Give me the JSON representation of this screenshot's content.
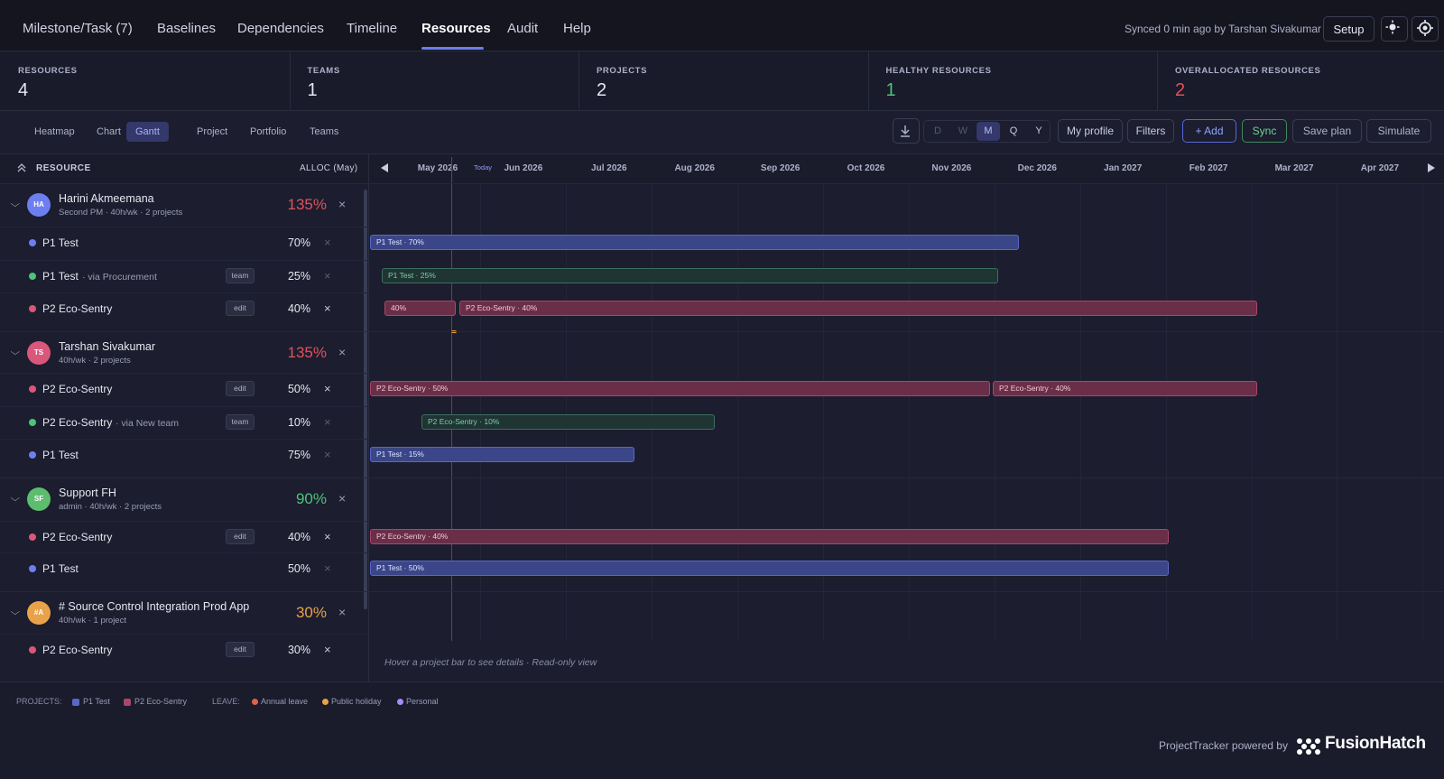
{
  "nav": {
    "tabs": [
      "Milestone/Task (7)",
      "Baselines",
      "Dependencies",
      "Timeline",
      "Resources",
      "Audit",
      "Help"
    ],
    "sync_status": "Synced 0 min ago by Tarshan Sivakumar",
    "setup": "Setup"
  },
  "stats": [
    {
      "label": "RESOURCES",
      "value": 4
    },
    {
      "label": "TEAMS",
      "value": 1
    },
    {
      "label": "PROJECTS",
      "value": 2
    },
    {
      "label": "HEALTHY RESOURCES",
      "value": 1
    },
    {
      "label": "OVERALLOCATED RESOURCES",
      "value": 2
    }
  ],
  "toolbar": {
    "views": [
      "Heatmap",
      "Chart",
      "Gantt",
      "Project",
      "Portfolio",
      "Teams"
    ],
    "scales": [
      "D",
      "W",
      "M",
      "Q",
      "Y"
    ],
    "my_profile": "My profile",
    "filters": "Filters",
    "add": "+ Add",
    "sync": "Sync",
    "save_plan": "Save plan",
    "simulate": "Simulate"
  },
  "grid_header": {
    "resource": "RESOURCE",
    "alloc": "ALLOC (May)",
    "today": "Today",
    "months": [
      "May 2026",
      "Jun 2026",
      "Jul 2026",
      "Aug 2026",
      "Sep 2026",
      "Oct 2026",
      "Nov 2026",
      "Dec 2026",
      "Jan 2027",
      "Feb 2027",
      "Mar 2027",
      "Apr 2027"
    ]
  },
  "resources": [
    {
      "initials": "HA",
      "name": "Harini Akmeemana",
      "meta": "Second PM · 40h/wk · 2 projects",
      "alloc": "135%",
      "assignments": [
        {
          "project": "P1 Test",
          "alloc": "70%",
          "bars": [
            "P1 Test · 70%"
          ]
        },
        {
          "project": "P1 Test",
          "via": "· via Procurement",
          "badge": "team",
          "alloc": "25%",
          "bars": [
            "P1 Test · 25%"
          ]
        },
        {
          "project": "P2 Eco-Sentry",
          "badge": "edit",
          "alloc": "40%",
          "bars": [
            "40%",
            "P2 Eco-Sentry · 40%"
          ]
        }
      ]
    },
    {
      "initials": "TS",
      "name": "Tarshan Sivakumar",
      "meta": "40h/wk · 2 projects",
      "alloc": "135%",
      "assignments": [
        {
          "project": "P2 Eco-Sentry",
          "badge": "edit",
          "alloc": "50%",
          "bars": [
            "P2 Eco-Sentry · 50%",
            "P2 Eco-Sentry · 40%"
          ]
        },
        {
          "project": "P2 Eco-Sentry",
          "via": "· via New team",
          "badge": "team",
          "alloc": "10%",
          "bars": [
            "P2 Eco-Sentry · 10%"
          ]
        },
        {
          "project": "P1 Test",
          "alloc": "75%",
          "bars": [
            "P1 Test · 15%"
          ]
        }
      ]
    },
    {
      "initials": "SF",
      "name": "Support FH",
      "meta": "admin · 40h/wk · 2 projects",
      "alloc": "90%",
      "assignments": [
        {
          "project": "P2 Eco-Sentry",
          "badge": "edit",
          "alloc": "40%",
          "bars": [
            "P2 Eco-Sentry · 40%"
          ]
        },
        {
          "project": "P1 Test",
          "alloc": "50%",
          "bars": [
            "P1 Test · 50%"
          ]
        }
      ]
    },
    {
      "initials": "#A",
      "name": "# Source Control Integration Prod App",
      "meta": "40h/wk · 1 project",
      "alloc": "30%",
      "assignments": [
        {
          "project": "P2 Eco-Sentry",
          "badge": "edit",
          "alloc": "30%"
        }
      ]
    }
  ],
  "legend": {
    "projects_label": "PROJECTS:",
    "projects": [
      "P1 Test",
      "P2 Eco-Sentry"
    ],
    "leave_label": "LEAVE:",
    "leave": [
      "Annual leave",
      "Public holiday",
      "Personal"
    ]
  },
  "footer": {
    "hint": "Hover a project bar to see details · Read-only view",
    "powered_by": "ProjectTracker powered by",
    "brand": "FusionHatch"
  }
}
